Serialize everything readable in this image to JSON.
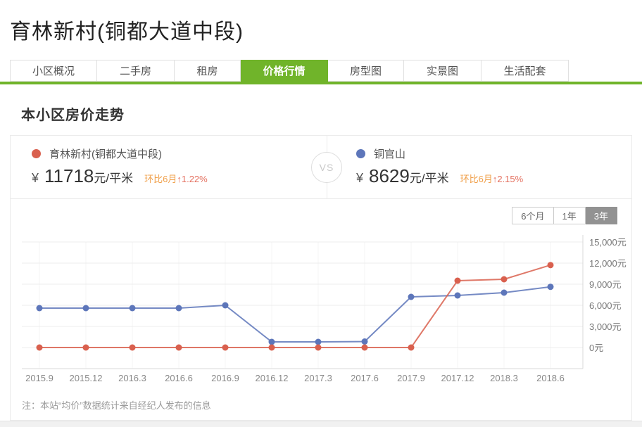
{
  "page": {
    "title": "育林新村(铜都大道中段)"
  },
  "tabs": [
    {
      "label": "小区概况",
      "active": false
    },
    {
      "label": "二手房",
      "active": false
    },
    {
      "label": "租房",
      "active": false
    },
    {
      "label": "价格行情",
      "active": true
    },
    {
      "label": "房型图",
      "active": false
    },
    {
      "label": "实景图",
      "active": false
    },
    {
      "label": "生活配套",
      "active": false
    }
  ],
  "section": {
    "title": "本小区房价走势"
  },
  "comparison": {
    "vs_label": "VS",
    "left": {
      "name": "育林新村(铜都大道中段)",
      "dot_color": "#d9604e",
      "currency": "¥",
      "price": "11718",
      "unit": "元/平米",
      "mom_label": "环比6月",
      "mom_value": "↑1.22%"
    },
    "right": {
      "name": "铜官山",
      "dot_color": "#5d76ba",
      "currency": "¥",
      "price": "8629",
      "unit": "元/平米",
      "mom_label": "环比6月",
      "mom_value": "↑2.15%"
    }
  },
  "period_buttons": [
    {
      "label": "6个月",
      "active": false
    },
    {
      "label": "1年",
      "active": false
    },
    {
      "label": "3年",
      "active": true
    }
  ],
  "chart_data": {
    "type": "line",
    "categories": [
      "2015.9",
      "2015.12",
      "2016.3",
      "2016.6",
      "2016.9",
      "2016.12",
      "2017.3",
      "2017.6",
      "2017.9",
      "2017.12",
      "2018.3",
      "2018.6"
    ],
    "series": [
      {
        "name": "铜官山",
        "color": "#5d76ba",
        "values": [
          5600,
          5600,
          5600,
          5600,
          6000,
          800,
          800,
          850,
          7200,
          7400,
          7800,
          8629
        ]
      },
      {
        "name": "育林新村(铜都大道中段)",
        "color": "#d9604e",
        "values": [
          0,
          0,
          0,
          0,
          0,
          0,
          0,
          0,
          0,
          9500,
          9700,
          11718
        ]
      }
    ],
    "ylim": [
      0,
      15000
    ],
    "ytick_step": 3000,
    "ytick_labels": [
      "0元",
      "3,000元",
      "6,000元",
      "9,000元",
      "12,000元",
      "15,000元"
    ],
    "yaxis_position": "right",
    "grid": true,
    "legend_position": "top-cards",
    "title": ""
  },
  "note": "注：本站“均价”数据统计来自经纪人发布的信息",
  "colors": {
    "accent_green": "#70b42a",
    "series_red": "#d9604e",
    "series_blue": "#5d76ba",
    "mom_orange": "#f0a04b",
    "mom_red": "#e4705f"
  }
}
